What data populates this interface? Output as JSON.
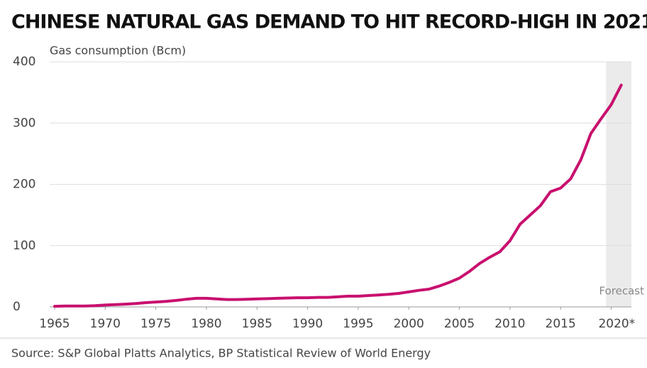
{
  "chart_data": {
    "type": "line",
    "title": "CHINESE NATURAL GAS DEMAND TO HIT RECORD-HIGH IN 2021",
    "y_axis_label": "Gas consumption (Bcm)",
    "source": "Source: S&P Global Platts Analytics, BP Statistical Review of World Energy",
    "annotation": "Forecast",
    "forecast_range": [
      2019.5,
      2022
    ],
    "color": "#c8106e",
    "x": [
      1965,
      1966,
      1967,
      1968,
      1969,
      1970,
      1971,
      1972,
      1973,
      1974,
      1975,
      1976,
      1977,
      1978,
      1979,
      1980,
      1981,
      1982,
      1983,
      1984,
      1985,
      1986,
      1987,
      1988,
      1989,
      1990,
      1991,
      1992,
      1993,
      1994,
      1995,
      1996,
      1997,
      1998,
      1999,
      2000,
      2001,
      2002,
      2003,
      2004,
      2005,
      2006,
      2007,
      2008,
      2009,
      2010,
      2011,
      2012,
      2013,
      2014,
      2015,
      2016,
      2017,
      2018,
      2019,
      2020,
      2021
    ],
    "values": [
      1,
      1.5,
      1.4,
      1.4,
      2,
      3,
      3.7,
      4.5,
      5.5,
      7,
      8,
      9,
      10.5,
      12.5,
      14,
      14,
      13,
      12,
      12,
      12.5,
      13,
      13.5,
      14,
      14.5,
      15,
      15,
      15.5,
      15.5,
      16.5,
      17.5,
      17.5,
      18.5,
      19.5,
      20.5,
      22,
      24.5,
      27,
      29,
      34,
      40,
      47,
      58,
      71,
      81,
      90,
      108,
      135,
      150,
      165,
      188,
      194,
      209,
      240,
      283,
      307,
      330,
      362
    ],
    "xlim": [
      1965,
      2022
    ],
    "xticks": [
      1965,
      1970,
      1975,
      1980,
      1985,
      1990,
      1995,
      2000,
      2005,
      2010,
      2015,
      {
        "value": 2020,
        "label": "2020*"
      }
    ],
    "ylim": [
      0,
      400
    ],
    "yticks": [
      0,
      100,
      200,
      300,
      400
    ],
    "grid": true
  }
}
